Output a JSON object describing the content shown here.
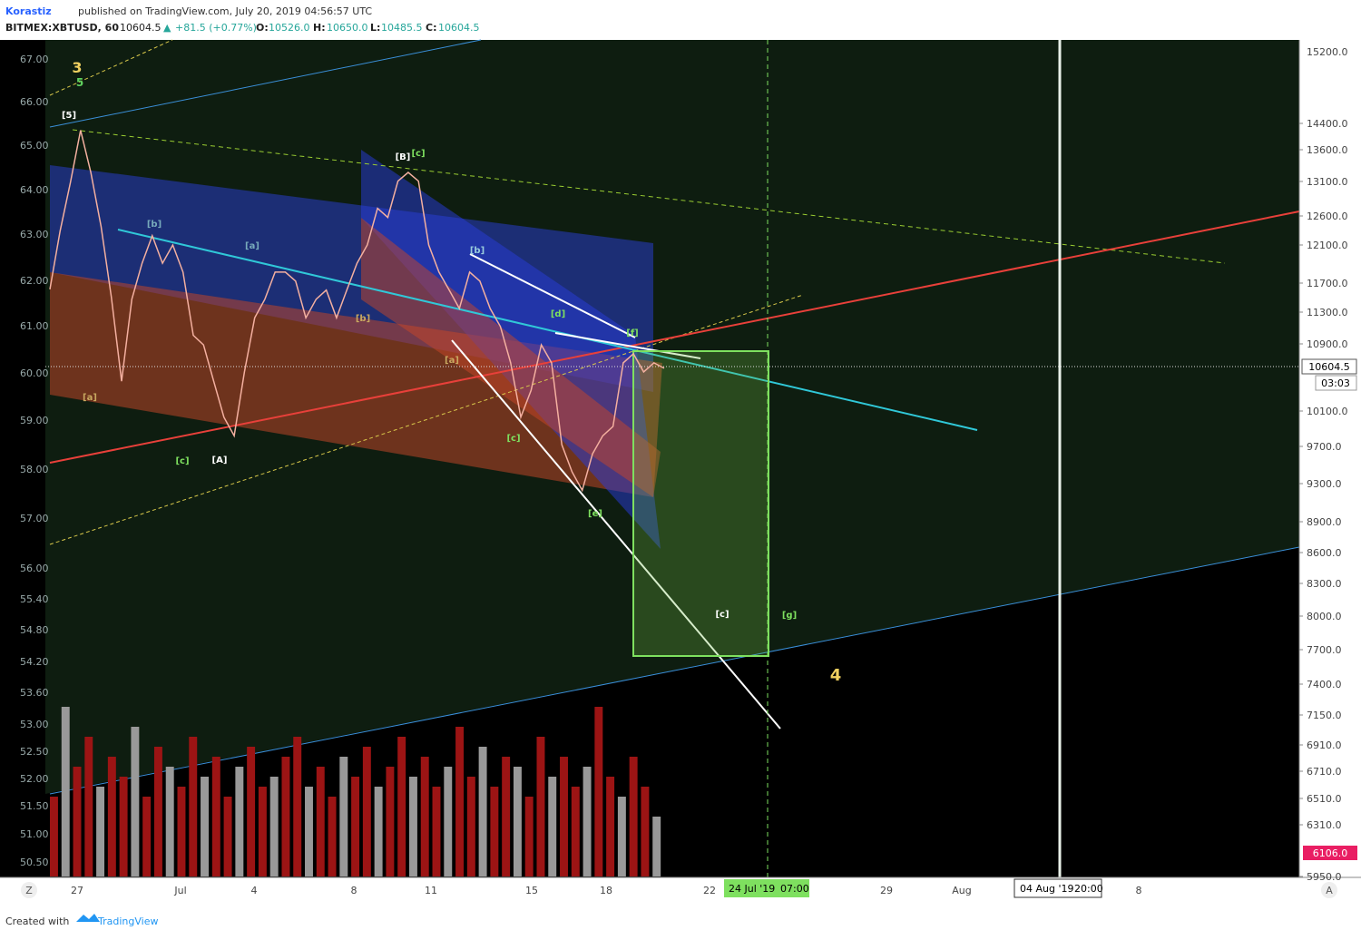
{
  "header": {
    "author": "Korastiz",
    "published": "published on TradingView.com, July 20, 2019 04:56:57 UTC",
    "symbol": "BITMEX:XBTUSD, 60",
    "last": "10604.5",
    "arrow": "▲",
    "change": "+81.5 (+0.77%)",
    "o_label": "O:",
    "open": "10526.0",
    "h_label": "H:",
    "high": "10650.0",
    "l_label": "L:",
    "low": "10485.5",
    "c_label": "C:",
    "close": "10604.5"
  },
  "left_axis": [
    "67.00",
    "66.00",
    "65.00",
    "64.00",
    "63.00",
    "62.00",
    "61.00",
    "60.00",
    "59.00",
    "58.00",
    "57.00",
    "56.00",
    "55.40",
    "54.80",
    "54.20",
    "53.60",
    "53.00",
    "52.50",
    "52.00",
    "51.50",
    "51.00",
    "50.50"
  ],
  "right_axis": [
    "15200.0",
    "14400.0",
    "13600.0",
    "13100.0",
    "12600.0",
    "12100.0",
    "11700.0",
    "11300.0",
    "10900.0",
    "10100.0",
    "9700.0",
    "9300.0",
    "8900.0",
    "8600.0",
    "8300.0",
    "8000.0",
    "7700.0",
    "7400.0",
    "7150.0",
    "6910.0",
    "6710.0",
    "6510.0",
    "6310.0",
    "5950.0"
  ],
  "time_axis": [
    "27",
    "Jul",
    "4",
    "8",
    "11",
    "15",
    "18",
    "22",
    "29",
    "Aug",
    "8"
  ],
  "badges": {
    "price": "10604.5",
    "countdown": "03:03",
    "volume": "6106.0",
    "time1_date": "24 Jul '19",
    "time1_hour": "07:00",
    "time2_date": "04 Aug '19",
    "time2_hour": "20:00",
    "corner_left": "Z",
    "corner_right": "A"
  },
  "wave_labels": [
    "3",
    "5",
    "[5]",
    "[b]",
    "[a]",
    "[a]",
    "[c]",
    "[A]",
    "[B]",
    "[c]",
    "[b]",
    "[b]",
    "[a]",
    "[d]",
    "[f]",
    "[c]",
    "[e]",
    "[c]",
    "[g]",
    "4"
  ],
  "price_series": {
    "values": [
      11600,
      12400,
      13100,
      13900,
      13250,
      12460,
      11500,
      10450,
      11470,
      11950,
      12330,
      11950,
      12200,
      11830,
      11010,
      10890,
      10450,
      10030,
      9820,
      10560,
      11230,
      11470,
      11830,
      11830,
      11710,
      11230,
      11470,
      11590,
      11230,
      11590,
      11950,
      12200,
      12720,
      12590,
      13120,
      13250,
      13120,
      12200,
      11830,
      11590,
      11350,
      11830,
      11710,
      11350,
      11120,
      10670,
      10030,
      10340,
      10890,
      10670,
      9720,
      9425,
      9230,
      9620,
      9820,
      9925,
      10670,
      10780,
      10560,
      10670,
      10604.5
    ]
  },
  "volume": [
    40,
    85,
    55,
    70,
    45,
    60,
    50,
    75,
    40,
    65,
    55,
    45,
    70,
    50,
    60,
    40,
    55,
    65,
    45,
    50,
    60,
    70,
    45,
    55,
    40,
    60,
    50,
    65,
    45,
    55,
    70,
    50,
    60,
    45,
    55,
    75,
    50,
    65,
    45,
    60,
    55,
    40,
    70,
    50,
    60,
    45,
    55,
    85,
    50,
    40,
    60,
    45,
    30
  ],
  "footer": {
    "created": "Created with",
    "brand": "TradingView"
  }
}
